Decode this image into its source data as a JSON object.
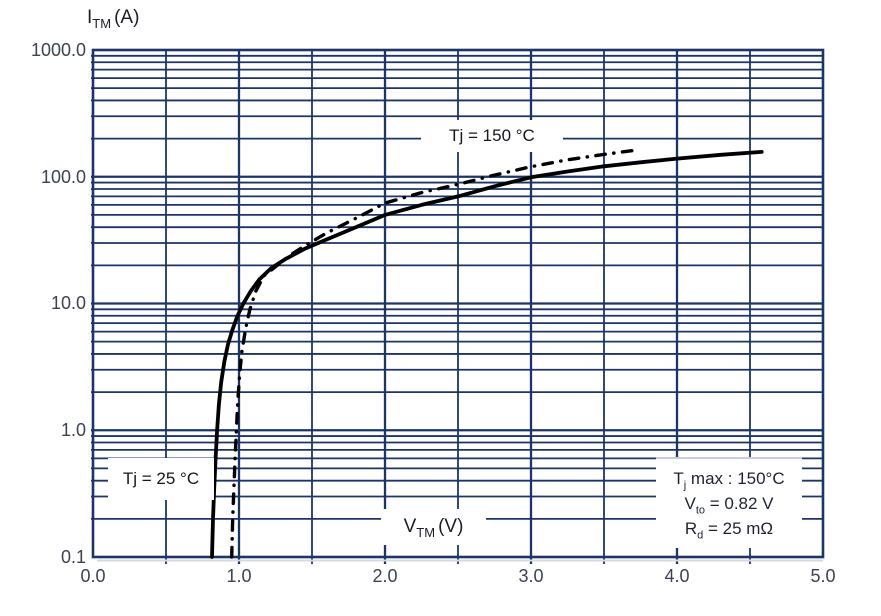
{
  "chart_data": {
    "type": "line",
    "title": "",
    "x_axis": {
      "title": {
        "pre": "V",
        "sub": "TM",
        "post": "(V)"
      },
      "scale": "linear",
      "range": [
        0,
        5
      ],
      "ticks": [
        "0.0",
        "1.0",
        "2.0",
        "3.0",
        "4.0",
        "5.0"
      ],
      "minor_step": 0.5
    },
    "y_axis": {
      "title": {
        "pre": "I",
        "sub": "TM",
        "post": "(A)"
      },
      "scale": "log",
      "range": [
        0.1,
        1000
      ],
      "ticks": [
        "1000.0",
        "100.0",
        "10.0",
        "1.0",
        "0.1"
      ]
    },
    "grid": "on",
    "legend_position": "inline-labels",
    "series": [
      {
        "name": "Tj = 25 °C",
        "line_style": "solid",
        "color": "#000000",
        "points": [
          [
            0.815,
            0.1
          ],
          [
            0.822,
            0.2
          ],
          [
            0.83,
            0.35
          ],
          [
            0.84,
            0.6
          ],
          [
            0.85,
            1.0
          ],
          [
            0.862,
            1.6
          ],
          [
            0.878,
            2.4
          ],
          [
            0.9,
            3.5
          ],
          [
            0.925,
            4.8
          ],
          [
            0.955,
            6.2
          ],
          [
            0.99,
            8.0
          ],
          [
            1.03,
            10
          ],
          [
            1.08,
            12.5
          ],
          [
            1.14,
            15.5
          ],
          [
            1.22,
            19
          ],
          [
            1.32,
            22.5
          ],
          [
            1.45,
            27
          ],
          [
            1.6,
            32
          ],
          [
            1.8,
            40
          ],
          [
            2.0,
            50
          ],
          [
            2.25,
            60
          ],
          [
            2.5,
            70
          ],
          [
            2.75,
            84
          ],
          [
            3.0,
            99
          ],
          [
            3.25,
            110
          ],
          [
            3.5,
            121
          ],
          [
            3.75,
            130
          ],
          [
            4.0,
            139
          ],
          [
            4.3,
            149
          ],
          [
            4.58,
            157
          ]
        ]
      },
      {
        "name": "Tj = 150 °C",
        "line_style": "dash-dot",
        "color": "#000000",
        "points": [
          [
            0.95,
            0.1
          ],
          [
            0.957,
            0.2
          ],
          [
            0.965,
            0.35
          ],
          [
            0.973,
            0.6
          ],
          [
            0.982,
            1.0
          ],
          [
            0.992,
            1.7
          ],
          [
            1.005,
            2.8
          ],
          [
            1.02,
            4.2
          ],
          [
            1.045,
            6.3
          ],
          [
            1.075,
            9.0
          ],
          [
            1.115,
            12.5
          ],
          [
            1.17,
            16.5
          ],
          [
            1.25,
            19.5
          ],
          [
            1.35,
            24
          ],
          [
            1.45,
            28.5
          ],
          [
            1.6,
            36
          ],
          [
            1.8,
            47
          ],
          [
            2.0,
            62
          ],
          [
            2.25,
            75
          ],
          [
            2.5,
            87
          ],
          [
            2.75,
            103
          ],
          [
            3.0,
            120
          ],
          [
            3.25,
            136
          ],
          [
            3.5,
            150
          ],
          [
            3.7,
            161
          ]
        ]
      }
    ],
    "annotations": {
      "curve_150_label": "Tj = 150 °C",
      "curve_25_label": "Tj = 25 °C",
      "info_box": {
        "lines": [
          {
            "pre": "T",
            "sub": "j",
            "post": " max : 150°C"
          },
          {
            "pre": "V",
            "sub": "to",
            "post": " = 0.82 V"
          },
          {
            "pre": "R",
            "sub": "d",
            "post": " = 25 mΩ"
          }
        ]
      }
    },
    "colors": {
      "grid": "#1c3566",
      "frame": "#1c3566",
      "curve": "#000000",
      "tick_text": "#3b4250",
      "shadow": "#d7d9dd"
    }
  }
}
